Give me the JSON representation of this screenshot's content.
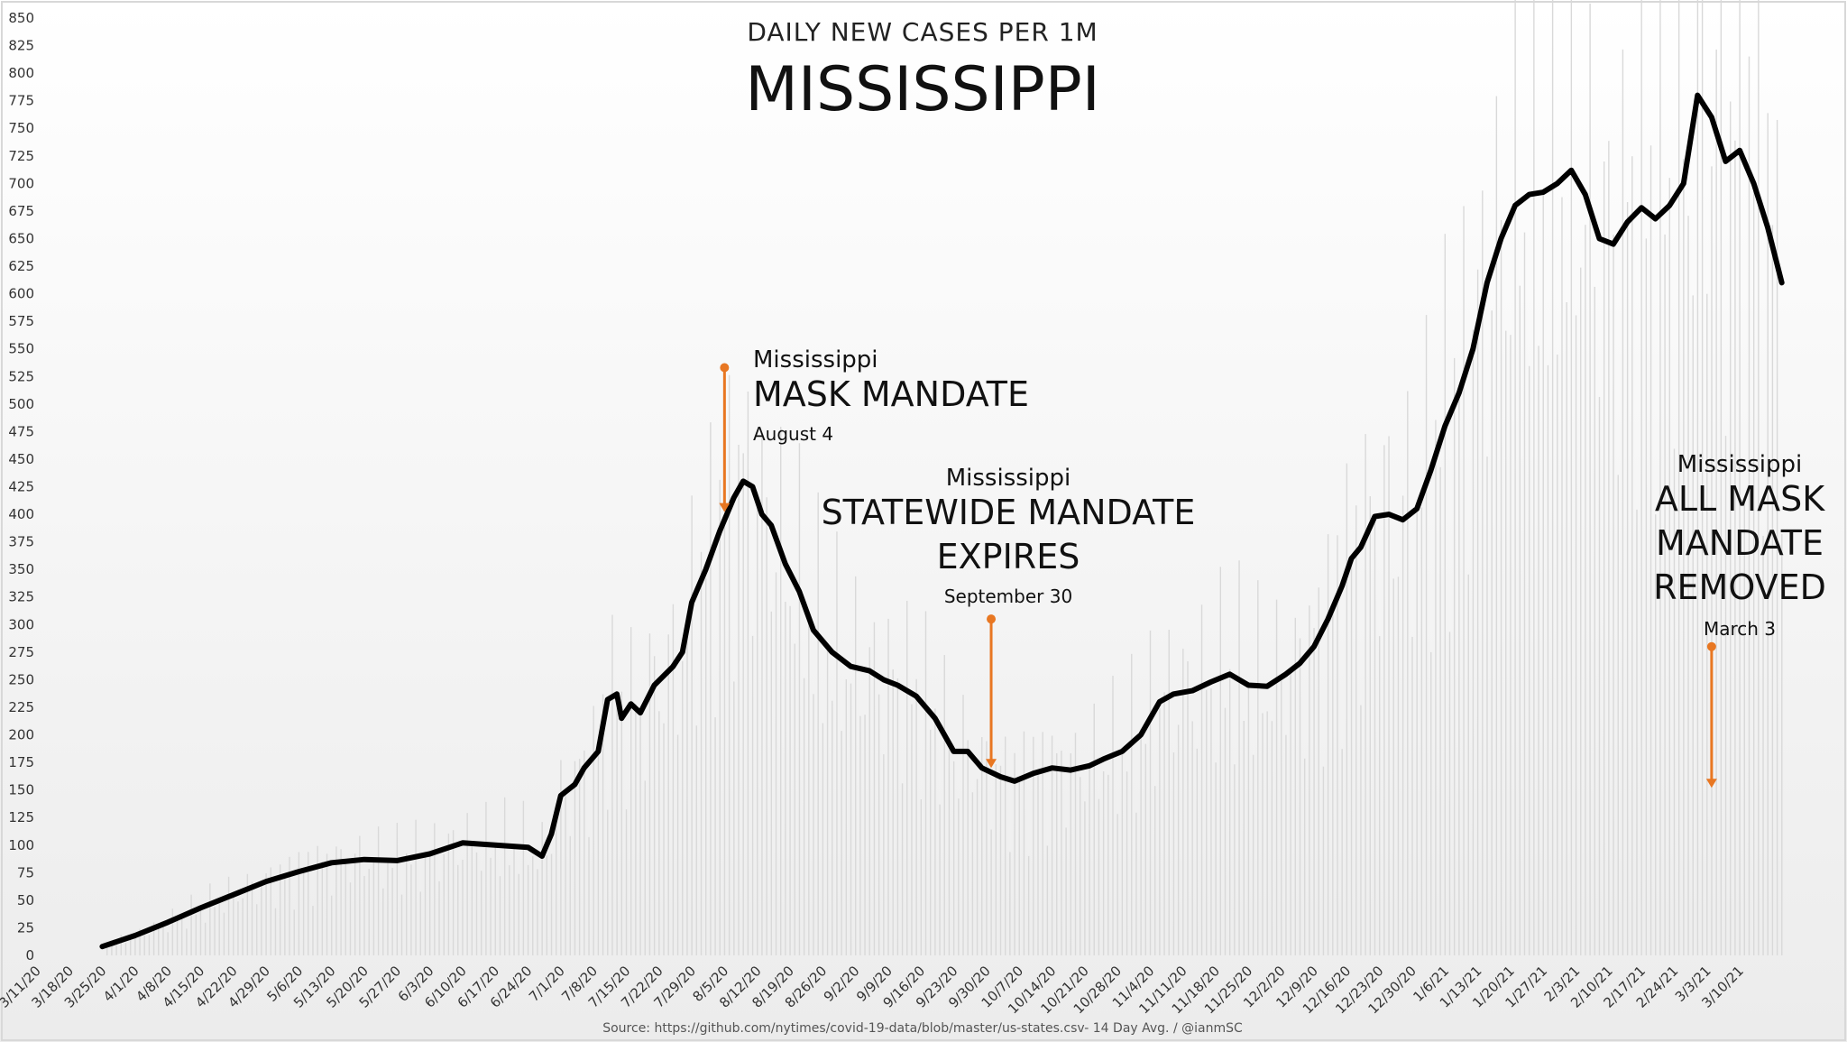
{
  "chart_data": {
    "type": "bar+line",
    "title": "DAILY NEW CASES PER 1M",
    "subtitle": "MISSISSIPPI",
    "source": "Source: https://github.com/nytimes/covid-19-data/blob/master/us-states.csv- 14 Day Avg. / @ianmSC",
    "ylim": [
      0,
      850
    ],
    "y_ticks": [
      0,
      25,
      50,
      75,
      100,
      125,
      150,
      175,
      200,
      225,
      250,
      275,
      300,
      325,
      350,
      375,
      400,
      425,
      450,
      475,
      500,
      525,
      550,
      575,
      600,
      625,
      650,
      675,
      700,
      725,
      750,
      775,
      800,
      825,
      850
    ],
    "x_start": "3/11/20",
    "x_end": "3/18/21",
    "x_tick_labels": [
      "3/11/20",
      "3/18/20",
      "3/25/20",
      "4/1/20",
      "4/8/20",
      "4/15/20",
      "4/22/20",
      "4/29/20",
      "5/6/20",
      "5/13/20",
      "5/20/20",
      "5/27/20",
      "6/3/20",
      "6/10/20",
      "6/17/20",
      "6/24/20",
      "7/1/20",
      "7/8/20",
      "7/15/20",
      "7/22/20",
      "7/29/20",
      "8/5/20",
      "8/12/20",
      "8/19/20",
      "8/26/20",
      "9/2/20",
      "9/9/20",
      "9/16/20",
      "9/23/20",
      "9/30/20",
      "10/7/20",
      "10/14/20",
      "10/21/20",
      "10/28/20",
      "11/4/20",
      "11/11/20",
      "11/18/20",
      "11/25/20",
      "12/2/20",
      "12/9/20",
      "12/16/20",
      "12/23/20",
      "12/30/20",
      "1/6/21",
      "1/13/21",
      "1/20/21",
      "1/27/21",
      "2/3/21",
      "2/10/21",
      "2/17/21",
      "2/24/21",
      "3/3/21",
      "3/10/21"
    ],
    "grid": false,
    "series": [
      {
        "name": "",
        "type": "line",
        "color": "#000000",
        "points": [
          [
            "3/24/20",
            8
          ],
          [
            "3/31/20",
            18
          ],
          [
            "4/7/20",
            30
          ],
          [
            "4/14/20",
            43
          ],
          [
            "4/21/20",
            55
          ],
          [
            "4/28/20",
            67
          ],
          [
            "5/5/20",
            76
          ],
          [
            "5/12/20",
            84
          ],
          [
            "5/19/20",
            87
          ],
          [
            "5/26/20",
            86
          ],
          [
            "6/2/20",
            92
          ],
          [
            "6/9/20",
            102
          ],
          [
            "6/16/20",
            100
          ],
          [
            "6/23/20",
            98
          ],
          [
            "6/26/20",
            90
          ],
          [
            "6/28/20",
            110
          ],
          [
            "6/30/20",
            145
          ],
          [
            "7/3/20",
            155
          ],
          [
            "7/5/20",
            170
          ],
          [
            "7/8/20",
            185
          ],
          [
            "7/10/20",
            232
          ],
          [
            "7/12/20",
            237
          ],
          [
            "7/13/20",
            215
          ],
          [
            "7/15/20",
            228
          ],
          [
            "7/17/20",
            220
          ],
          [
            "7/20/20",
            245
          ],
          [
            "7/24/20",
            262
          ],
          [
            "7/26/20",
            275
          ],
          [
            "7/28/20",
            320
          ],
          [
            "7/31/20",
            350
          ],
          [
            "8/3/20",
            385
          ],
          [
            "8/6/20",
            415
          ],
          [
            "8/8/20",
            430
          ],
          [
            "8/10/20",
            425
          ],
          [
            "8/12/20",
            400
          ],
          [
            "8/14/20",
            390
          ],
          [
            "8/17/20",
            355
          ],
          [
            "8/20/20",
            330
          ],
          [
            "8/23/20",
            295
          ],
          [
            "8/27/20",
            275
          ],
          [
            "8/31/20",
            262
          ],
          [
            "9/4/20",
            258
          ],
          [
            "9/7/20",
            250
          ],
          [
            "9/10/20",
            245
          ],
          [
            "9/14/20",
            235
          ],
          [
            "9/18/20",
            215
          ],
          [
            "9/22/20",
            185
          ],
          [
            "9/25/20",
            185
          ],
          [
            "9/28/20",
            170
          ],
          [
            "10/2/20",
            162
          ],
          [
            "10/5/20",
            158
          ],
          [
            "10/9/20",
            165
          ],
          [
            "10/13/20",
            170
          ],
          [
            "10/17/20",
            168
          ],
          [
            "10/21/20",
            172
          ],
          [
            "10/24/20",
            178
          ],
          [
            "10/28/20",
            185
          ],
          [
            "11/1/20",
            200
          ],
          [
            "11/5/20",
            230
          ],
          [
            "11/8/20",
            237
          ],
          [
            "11/12/20",
            240
          ],
          [
            "11/16/20",
            248
          ],
          [
            "11/20/20",
            255
          ],
          [
            "11/24/20",
            245
          ],
          [
            "11/28/20",
            244
          ],
          [
            "12/2/20",
            255
          ],
          [
            "12/5/20",
            265
          ],
          [
            "12/8/20",
            280
          ],
          [
            "12/11/20",
            305
          ],
          [
            "12/14/20",
            335
          ],
          [
            "12/16/20",
            360
          ],
          [
            "12/18/20",
            370
          ],
          [
            "12/21/20",
            398
          ],
          [
            "12/24/20",
            400
          ],
          [
            "12/27/20",
            395
          ],
          [
            "12/30/20",
            405
          ],
          [
            "1/2/21",
            440
          ],
          [
            "1/5/21",
            480
          ],
          [
            "1/8/21",
            510
          ],
          [
            "1/11/21",
            550
          ],
          [
            "1/14/21",
            610
          ],
          [
            "1/17/21",
            650
          ],
          [
            "1/20/21",
            680
          ],
          [
            "1/23/21",
            690
          ],
          [
            "1/26/21",
            692
          ],
          [
            "1/29/21",
            700
          ],
          [
            "2/1/21",
            712
          ],
          [
            "2/4/21",
            690
          ],
          [
            "2/7/21",
            650
          ],
          [
            "2/10/21",
            645
          ],
          [
            "2/13/21",
            665
          ],
          [
            "2/16/21",
            678
          ],
          [
            "2/19/21",
            668
          ],
          [
            "2/22/21",
            680
          ],
          [
            "2/25/21",
            700
          ],
          [
            "2/28/21",
            780
          ],
          [
            "3/3/21",
            760
          ],
          [
            "3/6/21",
            720
          ],
          [
            "3/9/21",
            730
          ],
          [
            "3/12/21",
            700
          ],
          [
            "3/15/21",
            660
          ],
          [
            "3/18/21",
            610
          ]
        ]
      }
    ],
    "annotations": [
      {
        "line1": "Mississippi",
        "line2": "MASK MANDATE",
        "line3": "",
        "date_label": "August 4",
        "date": "8/4/20",
        "color": "#E87722"
      },
      {
        "line1": "Mississippi",
        "line2": "STATEWIDE MANDATE",
        "line3": "EXPIRES",
        "date_label": "September 30",
        "date": "9/30/20",
        "color": "#E87722"
      },
      {
        "line1": "Mississippi",
        "line2": "ALL MASK",
        "line3": "MANDATE",
        "line4": "REMOVED",
        "date_label": "March 3",
        "date": "3/3/21",
        "color": "#E87722"
      }
    ]
  }
}
